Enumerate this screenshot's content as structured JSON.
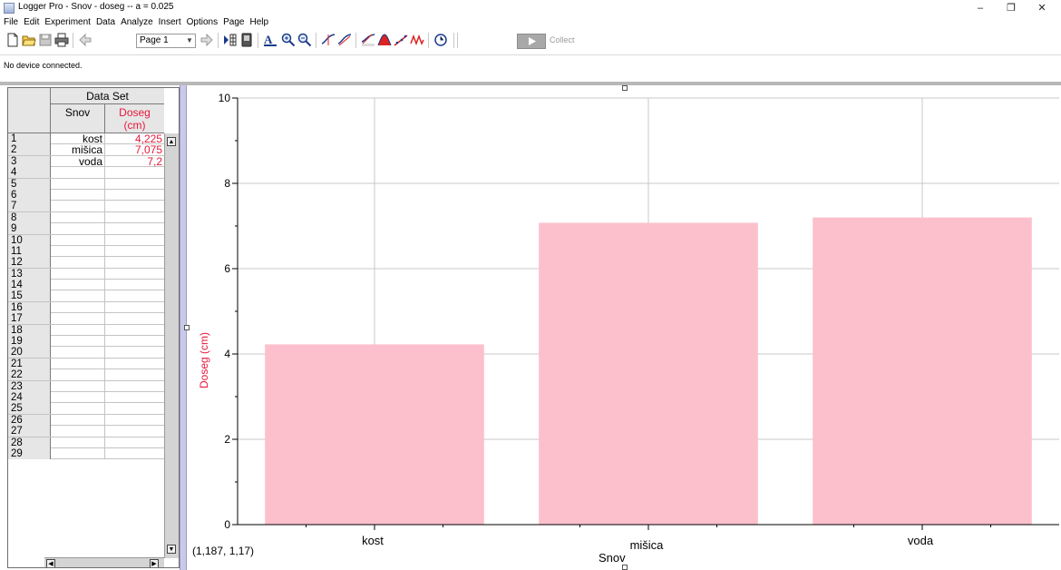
{
  "window": {
    "title": "Logger Pro - Snov - doseg -- a = 0.025",
    "minimize": "–",
    "restore": "❐",
    "close": "✕"
  },
  "menu": [
    "File",
    "Edit",
    "Experiment",
    "Data",
    "Analyze",
    "Insert",
    "Options",
    "Page",
    "Help"
  ],
  "toolbar": {
    "page_select": "Page 1",
    "collect_label": "Collect"
  },
  "status": {
    "text": "No device connected."
  },
  "table": {
    "dataset_title": "Data Set",
    "col1_name": "Snov",
    "col2_name": "Doseg",
    "col2_unit": "(cm)",
    "row_numbers": [
      "1",
      "2",
      "3",
      "4",
      "5",
      "6",
      "7",
      "8",
      "9",
      "10",
      "11",
      "12",
      "13",
      "14",
      "15",
      "16",
      "17",
      "18",
      "19",
      "20",
      "21",
      "22",
      "23",
      "24",
      "25",
      "26",
      "27",
      "28",
      "29"
    ],
    "rows": [
      {
        "snov": "kost",
        "doseg": "4,225"
      },
      {
        "snov": "mišica",
        "doseg": "7,075"
      },
      {
        "snov": "voda",
        "doseg": "7,2"
      }
    ]
  },
  "graph": {
    "coord_readout": "(1,187, 1,17)",
    "bar_color": "#fcc0cc",
    "axis_label_color": "#e8183c"
  },
  "chart_data": {
    "type": "bar",
    "categories": [
      "kost",
      "mišica",
      "voda"
    ],
    "values": [
      4.225,
      7.075,
      7.2
    ],
    "xlabel": "Snov",
    "ylabel": "Doseg (cm)",
    "ylim": [
      0,
      10
    ],
    "yticks": [
      0,
      2,
      4,
      6,
      8,
      10
    ],
    "grid": true
  }
}
